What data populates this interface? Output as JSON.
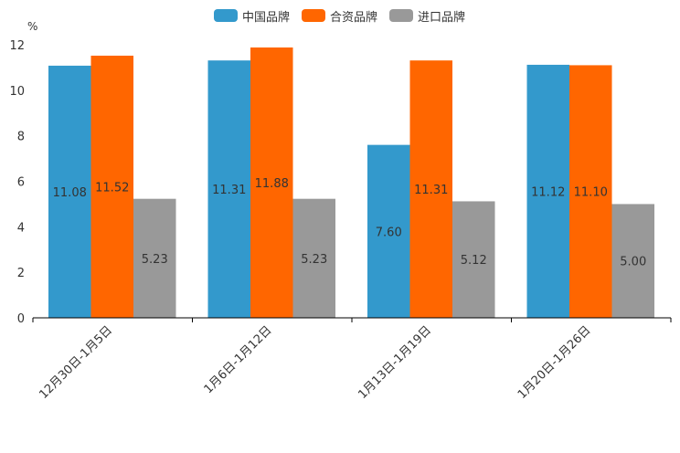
{
  "chart_data": {
    "type": "bar",
    "unit": "%",
    "categories": [
      "12月30日-1月5日",
      "1月6日-1月12日",
      "1月13日-1月19日",
      "1月20日-1月26日"
    ],
    "series": [
      {
        "name": "中国品牌",
        "color": "#3399cc",
        "values": [
          11.08,
          11.31,
          7.6,
          11.12
        ],
        "labels": [
          "11.08",
          "11.31",
          "7.60",
          "11.12"
        ]
      },
      {
        "name": "合资品牌",
        "color": "#ff6600",
        "values": [
          11.52,
          11.88,
          11.31,
          11.1
        ],
        "labels": [
          "11.52",
          "11.88",
          "11.31",
          "11.10"
        ]
      },
      {
        "name": "进口品牌",
        "color": "#999999",
        "values": [
          5.23,
          5.23,
          5.12,
          5.0
        ],
        "labels": [
          "5.23",
          "5.23",
          "5.12",
          "5.00"
        ]
      }
    ],
    "ylim": [
      0,
      12
    ],
    "yticks": [
      "0",
      "2",
      "4",
      "6",
      "8",
      "10",
      "12"
    ],
    "legend_position": "top-center"
  }
}
